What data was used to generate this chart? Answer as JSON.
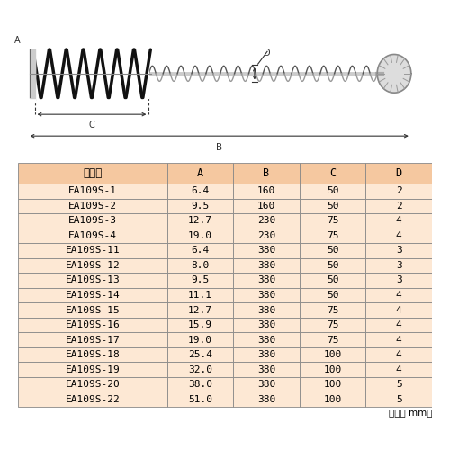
{
  "bg_color": "#ffffff",
  "table_header_bg": "#f5c8a0",
  "table_row_bg": "#fde8d4",
  "table_border_color": "#888888",
  "header_labels": [
    "品　番",
    "A",
    "B",
    "C",
    "D"
  ],
  "rows": [
    [
      "EA109S-1",
      "6.4",
      "160",
      "50",
      "2"
    ],
    [
      "EA109S-2",
      "9.5",
      "160",
      "50",
      "2"
    ],
    [
      "EA109S-3",
      "12.7",
      "230",
      "75",
      "4"
    ],
    [
      "EA109S-4",
      "19.0",
      "230",
      "75",
      "4"
    ],
    [
      "EA109S-11",
      "6.4",
      "380",
      "50",
      "3"
    ],
    [
      "EA109S-12",
      "8.0",
      "380",
      "50",
      "3"
    ],
    [
      "EA109S-13",
      "9.5",
      "380",
      "50",
      "3"
    ],
    [
      "EA109S-14",
      "11.1",
      "380",
      "50",
      "4"
    ],
    [
      "EA109S-15",
      "12.7",
      "380",
      "75",
      "4"
    ],
    [
      "EA109S-16",
      "15.9",
      "380",
      "75",
      "4"
    ],
    [
      "EA109S-17",
      "19.0",
      "380",
      "75",
      "4"
    ],
    [
      "EA109S-18",
      "25.4",
      "380",
      "100",
      "4"
    ],
    [
      "EA109S-19",
      "32.0",
      "380",
      "100",
      "4"
    ],
    [
      "EA109S-20",
      "38.0",
      "380",
      "100",
      "5"
    ],
    [
      "EA109S-22",
      "51.0",
      "380",
      "100",
      "5"
    ]
  ],
  "unit_text": "（単位 mm）",
  "dim_color": "#333333",
  "brush_dark": "#111111",
  "wire_color": "#aaaaaa"
}
